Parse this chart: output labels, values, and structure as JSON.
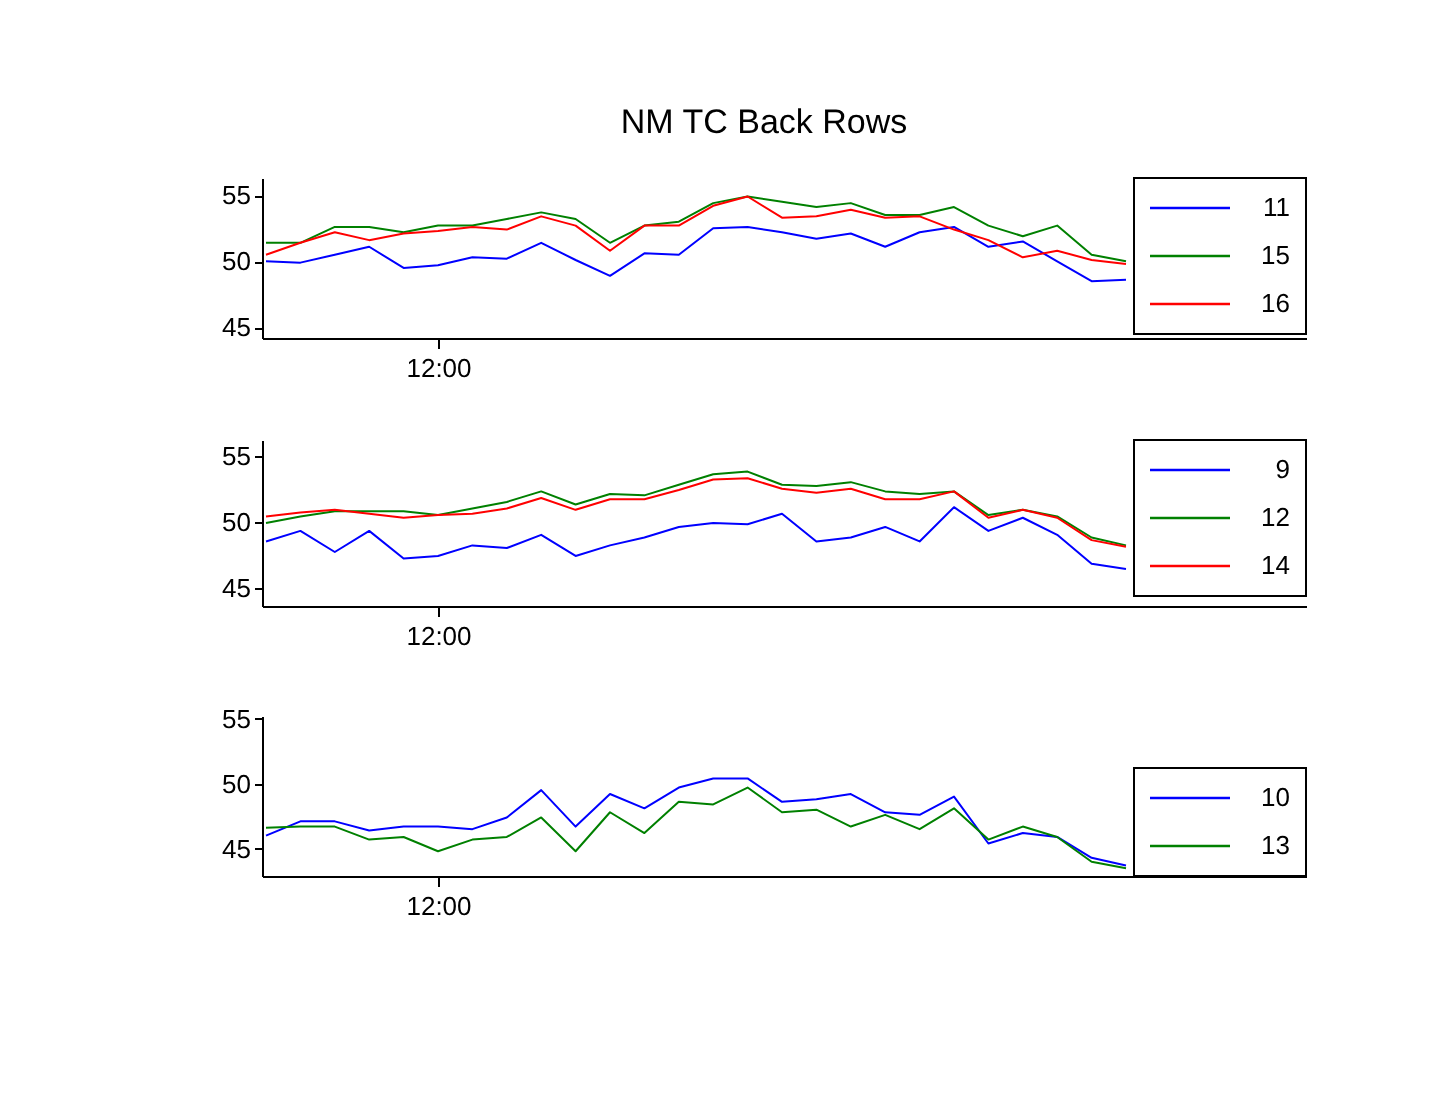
{
  "chart_data": [
    {
      "type": "line",
      "title": "NM TC Back Rows",
      "categories": [
        null,
        null,
        null,
        null,
        null,
        "12:00",
        null,
        null,
        null,
        null,
        null,
        null,
        null,
        null,
        null,
        null,
        null,
        null,
        null,
        null,
        null,
        null,
        null,
        null,
        null,
        null,
        null
      ],
      "ylim": [
        44.2,
        56.3
      ],
      "yticks": [
        45,
        50,
        55
      ],
      "grid": false,
      "legend": "top right",
      "marker": "none",
      "line_style": "solid",
      "series": [
        {
          "name": "11",
          "color": "#0000ff",
          "values": [
            50.0,
            49.9,
            50.5,
            51.1,
            49.5,
            49.7,
            50.3,
            50.2,
            51.4,
            50.1,
            48.9,
            50.6,
            50.5,
            52.5,
            52.6,
            52.2,
            51.7,
            52.1,
            51.1,
            52.2,
            52.6,
            51.1,
            51.5,
            50.0,
            48.5,
            48.6,
            null
          ]
        },
        {
          "name": "15",
          "color": "#008000",
          "values": [
            51.4,
            51.4,
            52.6,
            52.6,
            52.2,
            52.7,
            52.7,
            53.2,
            53.7,
            53.2,
            51.4,
            52.7,
            53.0,
            54.4,
            54.9,
            54.5,
            54.1,
            54.4,
            53.5,
            53.5,
            54.1,
            52.7,
            51.9,
            52.7,
            50.5,
            50.0,
            null
          ]
        },
        {
          "name": "16",
          "color": "#ff0000",
          "values": [
            50.5,
            51.4,
            52.2,
            51.6,
            52.1,
            52.3,
            52.6,
            52.4,
            53.4,
            52.7,
            50.8,
            52.7,
            52.7,
            54.2,
            54.9,
            53.3,
            53.4,
            53.9,
            53.3,
            53.4,
            52.4,
            51.6,
            50.3,
            50.8,
            50.1,
            49.8,
            null
          ]
        }
      ]
    },
    {
      "type": "line",
      "categories": [
        null,
        null,
        null,
        null,
        null,
        "12:00",
        null,
        null,
        null,
        null,
        null,
        null,
        null,
        null,
        null,
        null,
        null,
        null,
        null,
        null,
        null,
        null,
        null,
        null,
        null,
        null
      ],
      "ylim": [
        43.6,
        56.2
      ],
      "yticks": [
        45,
        50,
        55
      ],
      "grid": false,
      "legend": "top right",
      "marker": "none",
      "line_style": "solid",
      "series": [
        {
          "name": "9",
          "color": "#0000ff",
          "values": [
            48.5,
            49.3,
            47.7,
            49.3,
            47.2,
            47.4,
            48.2,
            48.0,
            49.0,
            47.4,
            48.2,
            48.8,
            49.6,
            49.9,
            49.8,
            50.6,
            48.5,
            48.8,
            49.6,
            48.5,
            51.1,
            49.3,
            50.3,
            49.0,
            46.8,
            46.4
          ]
        },
        {
          "name": "12",
          "color": "#008000",
          "values": [
            49.9,
            50.4,
            50.8,
            50.8,
            50.8,
            50.5,
            51.0,
            51.5,
            52.3,
            51.3,
            52.1,
            52.0,
            52.8,
            53.6,
            53.8,
            52.8,
            52.7,
            53.0,
            52.3,
            52.1,
            52.3,
            50.5,
            50.9,
            50.4,
            48.8,
            48.2
          ]
        },
        {
          "name": "14",
          "color": "#ff0000",
          "values": [
            50.4,
            50.7,
            50.9,
            50.6,
            50.3,
            50.5,
            50.6,
            51.0,
            51.8,
            50.9,
            51.7,
            51.7,
            52.4,
            53.2,
            53.3,
            52.5,
            52.2,
            52.5,
            51.7,
            51.7,
            52.3,
            50.3,
            50.9,
            50.3,
            48.6,
            48.1
          ]
        }
      ]
    },
    {
      "type": "line",
      "categories": [
        null,
        null,
        null,
        null,
        null,
        "12:00",
        null,
        null,
        null,
        null,
        null,
        null,
        null,
        null,
        null,
        null,
        null,
        null,
        null,
        null,
        null,
        null,
        null,
        null,
        null,
        null
      ],
      "ylim": [
        42.9,
        55.2
      ],
      "yticks": [
        45,
        50,
        55
      ],
      "grid": false,
      "legend": "bottom right",
      "marker": "none",
      "line_style": "solid",
      "series": [
        {
          "name": "10",
          "color": "#0000ff",
          "values": [
            46.0,
            47.1,
            47.1,
            46.4,
            46.7,
            46.7,
            46.5,
            47.4,
            49.5,
            46.7,
            49.2,
            48.1,
            49.7,
            50.4,
            50.4,
            48.6,
            48.8,
            49.2,
            47.8,
            47.6,
            49.0,
            45.4,
            46.2,
            45.9,
            44.3,
            43.7
          ]
        },
        {
          "name": "13",
          "color": "#008000",
          "values": [
            46.6,
            46.7,
            46.7,
            45.7,
            45.9,
            44.8,
            45.7,
            45.9,
            47.4,
            44.8,
            47.8,
            46.2,
            48.6,
            48.4,
            49.7,
            47.8,
            48.0,
            46.7,
            47.6,
            46.5,
            48.1,
            45.7,
            46.7,
            45.9,
            44.0,
            43.5
          ]
        }
      ]
    }
  ]
}
